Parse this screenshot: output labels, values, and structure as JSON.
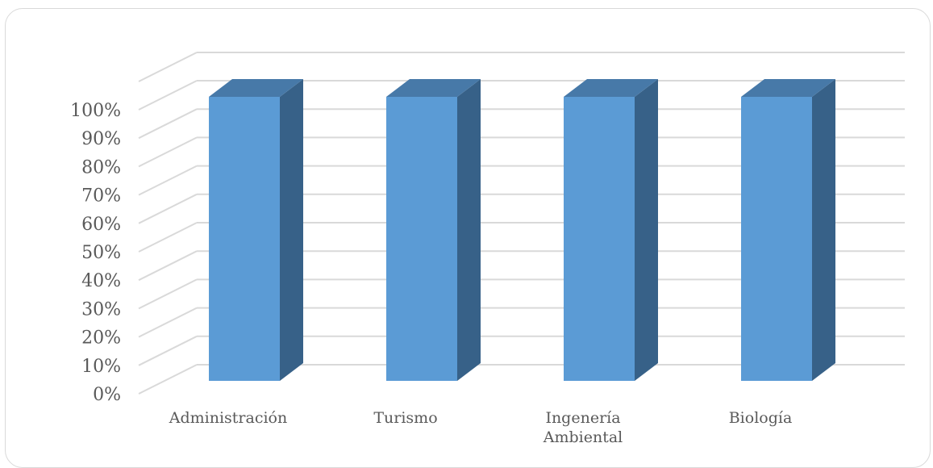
{
  "chart_data": {
    "type": "bar",
    "style": "3d-column",
    "categories": [
      "Administración",
      "Turismo",
      "Ingenería Ambiental",
      "Biología"
    ],
    "category_lines": [
      [
        "Administración"
      ],
      [
        "Turismo"
      ],
      [
        "Ingenería",
        "Ambiental"
      ],
      [
        "Biología"
      ]
    ],
    "values": [
      100,
      100,
      100,
      100
    ],
    "y_ticks": [
      "0%",
      "10%",
      "20%",
      "30%",
      "40%",
      "50%",
      "60%",
      "70%",
      "80%",
      "90%",
      "100%"
    ],
    "ylim": [
      0,
      100
    ],
    "grid": true,
    "legend": "none",
    "colors": {
      "front": "#5b9bd5",
      "side": "#376188",
      "top": "#4779a8",
      "grid": "#d9d9d9",
      "text": "#595959"
    }
  }
}
